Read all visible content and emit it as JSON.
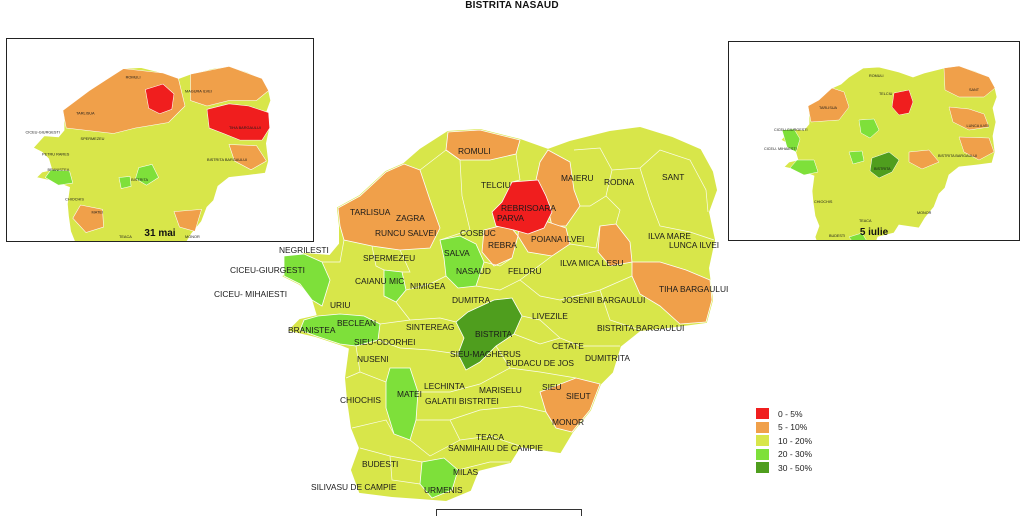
{
  "title": "BISTRITA NASAUD",
  "colors": {
    "c0_5": "#f01e1e",
    "c5_10": "#f0a04a",
    "c10_20": "#d8e64a",
    "c20_30": "#7ee03a",
    "c30_50": "#4f9e1e",
    "border": "#ffffff"
  },
  "legend": [
    {
      "label": "0 - 5%",
      "color": "#f01e1e"
    },
    {
      "label": "5 - 10%",
      "color": "#f0a04a"
    },
    {
      "label": "10 - 20%",
      "color": "#d8e64a"
    },
    {
      "label": "20 - 30%",
      "color": "#7ee03a"
    },
    {
      "label": "30 - 50%",
      "color": "#4f9e1e"
    }
  ],
  "inset_left": {
    "caption": "31 mai"
  },
  "inset_right": {
    "caption": "5 iulie"
  },
  "communes": [
    "ROMULI",
    "MAIERU",
    "RODNA",
    "SANT",
    "TELCIU",
    "REBRISOARA",
    "PARVA",
    "TARLISUA",
    "ZAGRA",
    "RUNCU SALVEI",
    "COSBUC",
    "REBRA",
    "POIANA  ILVEI",
    "ILVA MARE",
    "LUNCA ILVEI",
    "NEGRILESTI",
    "SPERMEZEU",
    "SALVA",
    "CICEU-GIURGESTI",
    "NASAUD",
    "FELDRU",
    "ILVA MICA LESU",
    "CAIANU MIC",
    "NIMIGEA",
    "TIHA BARGAULUI",
    "CICEU- MIHAIESTI",
    "DUMITRA",
    "JOSENII BARGAULUI",
    "URIU",
    "BECLEAN",
    "LIVEZILE",
    "BRANISTEA",
    "SINTEREAG",
    "BISTRITA",
    "BISTRITA BARGAULUI",
    "SIEU-ODORHEI",
    "CETATE",
    "SIEU-MAGHERUS",
    "NUSENI",
    "BUDACU DE JOS",
    "DUMITRITA",
    "LECHINTA",
    "MARISELU",
    "SIEU",
    "SIEUT",
    "CHIOCHIS",
    "MATEI",
    "GALATII BISTRITEI",
    "MONOR",
    "TEACA",
    "SANMIHAIU DE CAMPIE",
    "BUDESTI",
    "MILAS",
    "SILIVASU DE CAMPIE",
    "URMENIS"
  ]
}
